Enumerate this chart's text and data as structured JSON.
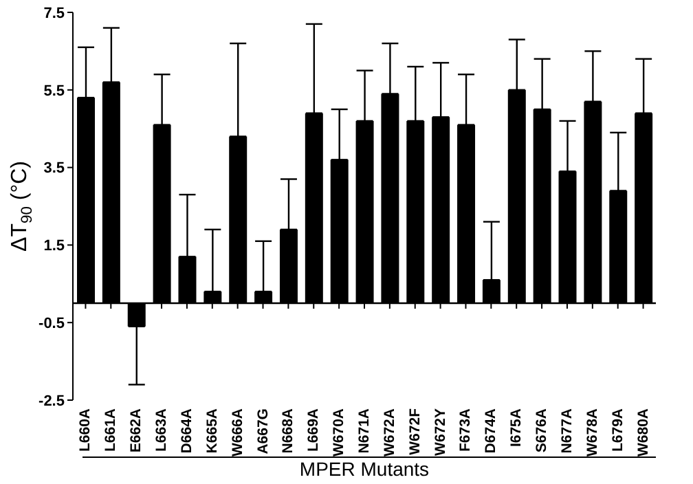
{
  "chart_data": {
    "type": "bar",
    "xlabel": "MPER Mutants",
    "ylabel": "ΔT$_{90}$ (°C)",
    "categories": [
      "L660A",
      "L661A",
      "E662A",
      "L663A",
      "D664A",
      "K665A",
      "W666A",
      "A667G",
      "N668A",
      "L669A",
      "W670A",
      "N671A",
      "W672A",
      "W672F",
      "W672Y",
      "F673A",
      "D674A",
      "I675A",
      "S676A",
      "N677A",
      "W678A",
      "L679A",
      "W680A"
    ],
    "values": [
      5.3,
      5.7,
      -0.6,
      4.6,
      1.2,
      0.3,
      4.3,
      0.3,
      1.9,
      4.9,
      3.7,
      4.7,
      5.4,
      4.7,
      4.8,
      4.6,
      0.6,
      5.5,
      5.0,
      3.4,
      5.2,
      2.9,
      4.9
    ],
    "errors": [
      [
        5.3,
        6.6
      ],
      [
        5.7,
        7.1
      ],
      [
        -2.1,
        -0.6
      ],
      [
        4.6,
        5.9
      ],
      [
        1.2,
        2.8
      ],
      [
        0.3,
        1.9
      ],
      [
        4.3,
        6.7
      ],
      [
        0.3,
        1.6
      ],
      [
        1.9,
        3.2
      ],
      [
        4.9,
        7.2
      ],
      [
        3.7,
        5.0
      ],
      [
        4.7,
        6.0
      ],
      [
        5.4,
        6.7
      ],
      [
        4.7,
        6.1
      ],
      [
        4.8,
        6.2
      ],
      [
        4.6,
        5.9
      ],
      [
        0.6,
        2.1
      ],
      [
        5.5,
        6.8
      ],
      [
        5.0,
        6.3
      ],
      [
        3.4,
        4.7
      ],
      [
        5.2,
        6.5
      ],
      [
        2.9,
        4.4
      ],
      [
        4.9,
        6.3
      ]
    ],
    "color": "#000000",
    "ylim": [
      -2.5,
      7.5
    ],
    "yticks": [
      -2.5,
      -0.5,
      1.5,
      3.5,
      5.5,
      7.5
    ],
    "grid": false,
    "legend": false
  }
}
